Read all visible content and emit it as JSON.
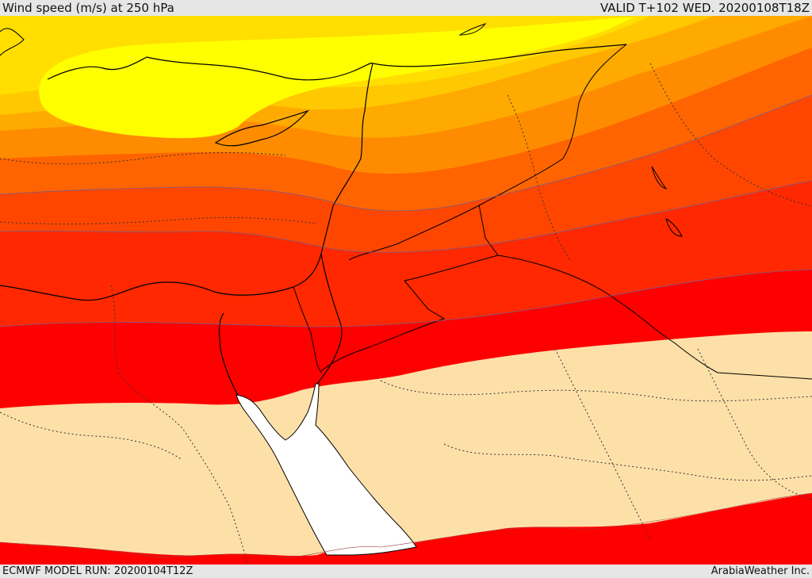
{
  "header": {
    "title": "Wind speed (m/s) at 250 hPa",
    "valid": "VALID T+102 WED. 20200108T18Z"
  },
  "footer": {
    "model_run": "ECMWF MODEL RUN: 20200104T12Z",
    "credit": "ArabiaWeather Inc."
  },
  "map": {
    "field": "wind speed at 250 hPa",
    "colors": {
      "yellow": "#ffff00",
      "light_gold": "#ffde00",
      "gold": "#ffc800",
      "light_orange": "#ffaa00",
      "orange": "#ff8c00",
      "dark_orange": "#ff6400",
      "red_orange": "#ff4600",
      "orange_red": "#ff2800",
      "red": "#ff0000",
      "land_tan": "#fde0a8",
      "sea_white": "#ffffff"
    }
  }
}
